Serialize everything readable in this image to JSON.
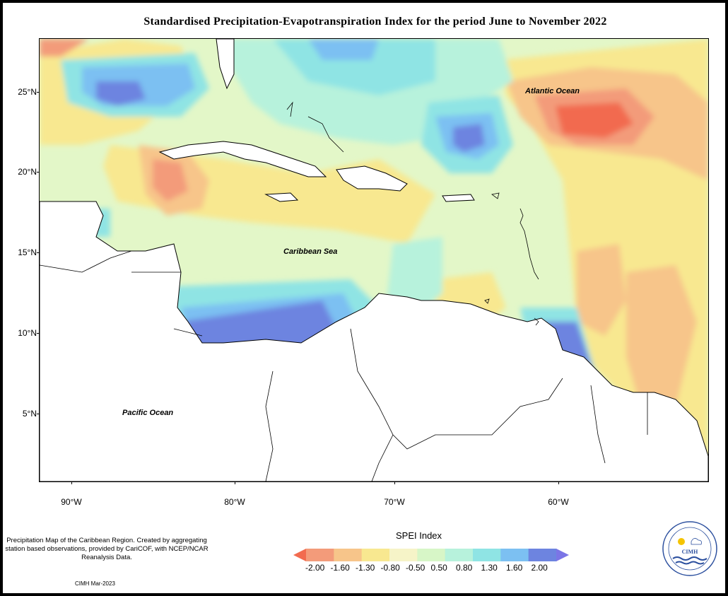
{
  "title": "Standardised Precipitation-Evapotranspiration Index for the period June to November 2022",
  "lat_labels": [
    "25°N",
    "20°N",
    "15°N",
    "10°N",
    "5°N"
  ],
  "lon_labels": [
    "90°W",
    "80°W",
    "70°W",
    "60°W"
  ],
  "map_labels": {
    "atlantic": "Atlantic Ocean",
    "caribbean": "Caribbean Sea",
    "pacific": "Pacific Ocean"
  },
  "note": "Precipitation Map of the Caribbean Region. Created by aggregating station based observations, provided by CariCOF, with NCEP/NCAR Reanalysis Data.",
  "credit": "CIMH Mar-2023",
  "legend": {
    "title": "SPEI Index",
    "values": [
      "-2.00",
      "-1.60",
      "-1.30",
      "-0.80",
      "-0.50",
      "0.50",
      "0.80",
      "1.30",
      "1.60",
      "2.00"
    ],
    "colors": [
      "#f26b4f",
      "#f39b7a",
      "#f7c58a",
      "#f8e890",
      "#f6f4c8",
      "#d7f6c7",
      "#b7f2dc",
      "#8fe4e4",
      "#7cc0f2",
      "#6d84e0",
      "#7b75e6"
    ]
  },
  "logo_text": "CIMH"
}
